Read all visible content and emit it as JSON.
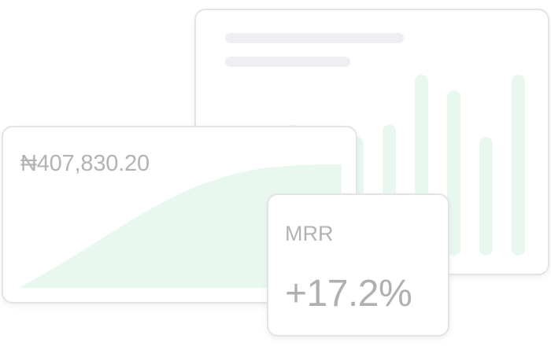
{
  "colors": {
    "skeleton": "#eeeef3",
    "accent_fill": "#e9f8ef",
    "text_muted": "#b3b3b3",
    "card_border": "#e4e4e6"
  },
  "revenue_card": {
    "amount": "₦407,830.20",
    "trend_progress": 1.0
  },
  "bar_card": {
    "bar_levels": [
      0.38,
      0.42,
      0.38,
      0.38,
      0.42,
      0.58,
      0.53,
      0.38,
      0.58
    ]
  },
  "mrr_card": {
    "label": "MRR",
    "value": "+17.2%"
  }
}
